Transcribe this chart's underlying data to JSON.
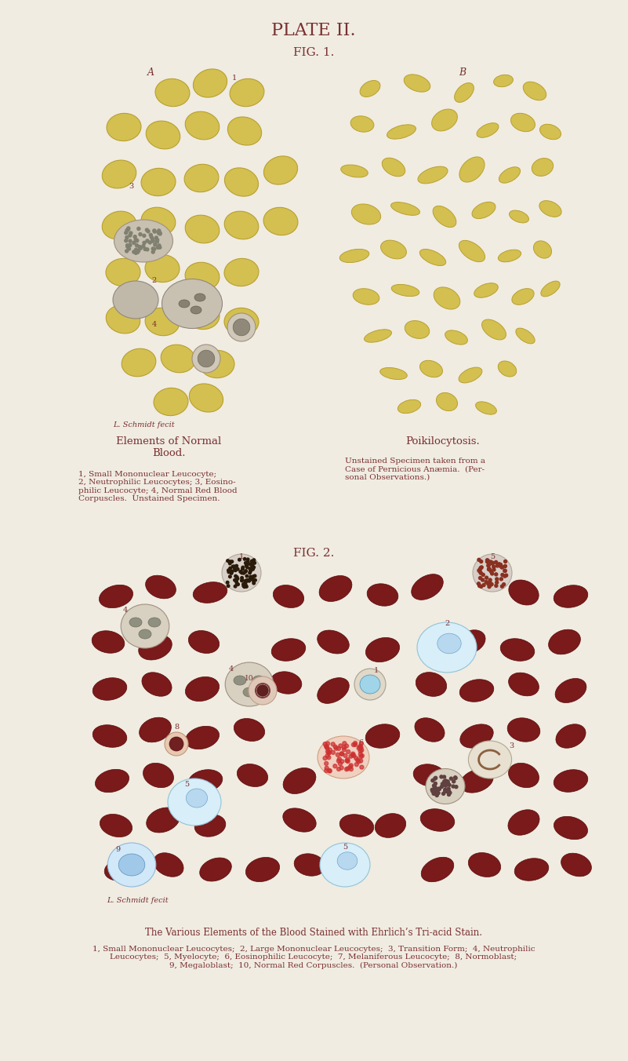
{
  "bg_color": "#f0ece2",
  "title_color": "#7a3030",
  "title": "PLATE II.",
  "fig1_label": "FIG. 1.",
  "fig2_label": "FIG. 2.",
  "fig1_left_title": "Elements of Normal\nBlood.",
  "fig1_left_caption": "1, Small Mononuclear Leucocyte;\n2, Neutrophilic Leucocytes; 3, Eosino-\nphilic Leucocyte; 4, Normal Red Blood\nCorpuscles.  Unstained Specimen.",
  "fig1_right_title": "Poikilocytosis.",
  "fig1_right_caption": "Unstained Specimen taken from a\nCase of Pernicious Anæmia.  (Per-\nsonal Observations.)",
  "fig2_caption_title": "The Various Elements of the Blood Stained with Ehrlich’s Tri-acid Stain.",
  "fig2_caption": "1, Small Mononuclear Leucocytes;  2, Large Mononuclear Leucocytes;  3, Transition Form;  4, Neutrophilic\nLeucocytes;  5, Myelocyte;  6, Eosinophilic Leucocyte;  7, Melaniferous Leucocyte;  8, Normoblast;\n9, Megaloblast;  10, Normal Red Corpuscles.  (Personal Observation.)",
  "signature": "L. Schmidt fecit",
  "rbc_color": "#d4c050",
  "rbc_outline": "#b8a030",
  "rbc2_color": "#7a1a1a",
  "rbc2_outline": "#5a0a0a",
  "leucocyte_fill": "#d8d0c0",
  "leucocyte_outline": "#a09080",
  "blue_cell_fill": "#a0d4e8",
  "blue_cell_outline": "#5090b0",
  "pink_cell_fill": "#e8a090",
  "eosinophil_dots": "#cc3030"
}
